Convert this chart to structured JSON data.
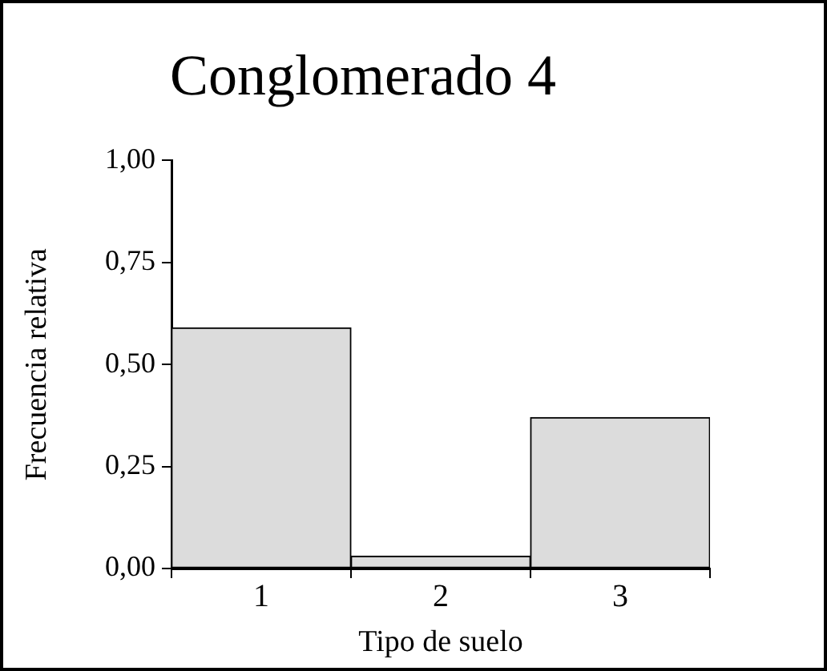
{
  "chart_data": {
    "type": "bar",
    "title": "Conglomerado 4",
    "xlabel": "Tipo de suelo",
    "ylabel": "Frecuencia relativa",
    "categories": [
      "1",
      "2",
      "3"
    ],
    "values": [
      0.59,
      0.03,
      0.37
    ],
    "color": "#dcdcdc",
    "ylim": [
      0,
      1
    ],
    "yticks": [
      {
        "value": 0,
        "label": "0,00"
      },
      {
        "value": 0.25,
        "label": "0,25"
      },
      {
        "value": 0.5,
        "label": "0,50"
      },
      {
        "value": 0.75,
        "label": "0,75"
      },
      {
        "value": 1,
        "label": "1,00"
      }
    ],
    "grid": false
  }
}
